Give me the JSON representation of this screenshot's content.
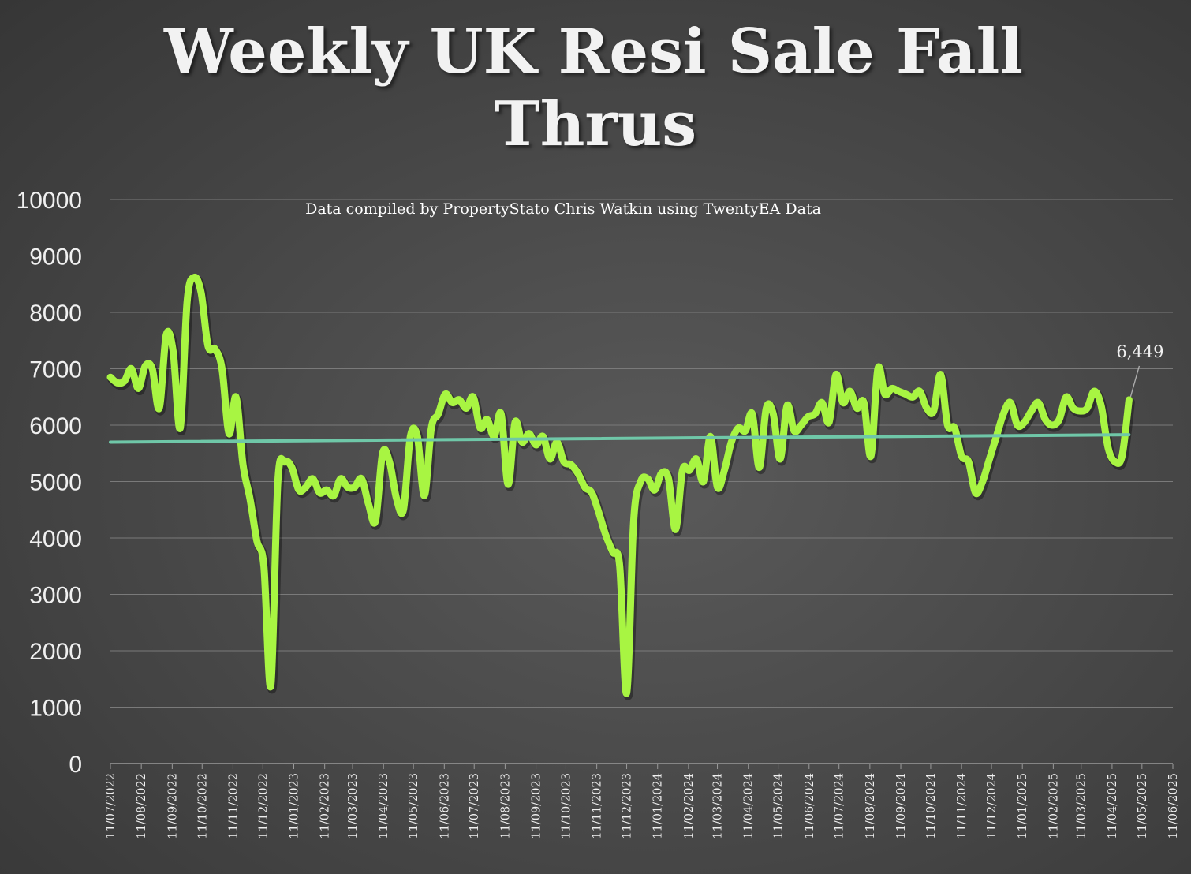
{
  "chart_data": {
    "type": "line",
    "title_line1": "Weekly UK Resi Sale Fall",
    "title_line2": "Thrus",
    "subtitle": "Data compiled by PropertyStato Chris Watkin using TwentyEA Data",
    "ylim": [
      0,
      10000
    ],
    "yticks": [
      "0",
      "1000",
      "2000",
      "3000",
      "4000",
      "5000",
      "6000",
      "7000",
      "8000",
      "9000",
      "10000"
    ],
    "grid": true,
    "xlim": [
      "2022-07-11",
      "2025-06-11"
    ],
    "xticks": [
      "11/07/2022",
      "11/08/2022",
      "11/09/2022",
      "11/10/2022",
      "11/11/2022",
      "11/12/2022",
      "11/01/2023",
      "11/02/2023",
      "11/03/2023",
      "11/04/2023",
      "11/05/2023",
      "11/06/2023",
      "11/07/2023",
      "11/08/2023",
      "11/09/2023",
      "11/10/2023",
      "11/11/2023",
      "11/12/2023",
      "11/01/2024",
      "11/02/2024",
      "11/03/2024",
      "11/04/2024",
      "11/05/2024",
      "11/06/2024",
      "11/07/2024",
      "11/08/2024",
      "11/09/2024",
      "11/10/2024",
      "11/11/2024",
      "11/12/2024",
      "11/01/2025",
      "11/02/2025",
      "11/03/2025",
      "11/04/2025",
      "11/05/2025",
      "11/06/2025"
    ],
    "line_color": "#a8f542",
    "trend_color": "#6fc7a8",
    "series": [
      {
        "values": [
          [
            "2022-07-11",
            6850
          ],
          [
            "2022-07-18",
            6750
          ],
          [
            "2022-07-25",
            6780
          ],
          [
            "2022-08-01",
            7000
          ],
          [
            "2022-08-08",
            6650
          ],
          [
            "2022-08-15",
            7050
          ],
          [
            "2022-08-22",
            7000
          ],
          [
            "2022-08-29",
            6300
          ],
          [
            "2022-09-05",
            7600
          ],
          [
            "2022-09-12",
            7300
          ],
          [
            "2022-09-19",
            5950
          ],
          [
            "2022-09-26",
            8200
          ],
          [
            "2022-10-03",
            8620
          ],
          [
            "2022-10-10",
            8350
          ],
          [
            "2022-10-17",
            7400
          ],
          [
            "2022-10-24",
            7350
          ],
          [
            "2022-10-31",
            7000
          ],
          [
            "2022-11-07",
            5850
          ],
          [
            "2022-11-14",
            6500
          ],
          [
            "2022-11-21",
            5300
          ],
          [
            "2022-11-28",
            4700
          ],
          [
            "2022-12-05",
            3950
          ],
          [
            "2022-12-12",
            3500
          ],
          [
            "2022-12-19",
            1380
          ],
          [
            "2022-12-26",
            5000
          ],
          [
            "2023-01-02",
            5350
          ],
          [
            "2023-01-09",
            5250
          ],
          [
            "2023-01-16",
            4850
          ],
          [
            "2023-01-23",
            4900
          ],
          [
            "2023-01-30",
            5050
          ],
          [
            "2023-02-06",
            4800
          ],
          [
            "2023-02-13",
            4850
          ],
          [
            "2023-02-20",
            4750
          ],
          [
            "2023-02-27",
            5050
          ],
          [
            "2023-03-06",
            4900
          ],
          [
            "2023-03-13",
            4900
          ],
          [
            "2023-03-20",
            5050
          ],
          [
            "2023-03-27",
            4600
          ],
          [
            "2023-04-03",
            4300
          ],
          [
            "2023-04-10",
            5500
          ],
          [
            "2023-04-17",
            5350
          ],
          [
            "2023-04-24",
            4700
          ],
          [
            "2023-05-01",
            4500
          ],
          [
            "2023-05-08",
            5800
          ],
          [
            "2023-05-15",
            5800
          ],
          [
            "2023-05-22",
            4750
          ],
          [
            "2023-05-29",
            5950
          ],
          [
            "2023-06-05",
            6200
          ],
          [
            "2023-06-12",
            6550
          ],
          [
            "2023-06-19",
            6400
          ],
          [
            "2023-06-26",
            6450
          ],
          [
            "2023-07-03",
            6300
          ],
          [
            "2023-07-10",
            6500
          ],
          [
            "2023-07-17",
            5950
          ],
          [
            "2023-07-24",
            6100
          ],
          [
            "2023-07-31",
            5800
          ],
          [
            "2023-08-07",
            6200
          ],
          [
            "2023-08-14",
            4950
          ],
          [
            "2023-08-21",
            6050
          ],
          [
            "2023-08-28",
            5700
          ],
          [
            "2023-09-04",
            5850
          ],
          [
            "2023-09-11",
            5650
          ],
          [
            "2023-09-18",
            5800
          ],
          [
            "2023-09-25",
            5400
          ],
          [
            "2023-10-02",
            5700
          ],
          [
            "2023-10-09",
            5350
          ],
          [
            "2023-10-16",
            5300
          ],
          [
            "2023-10-23",
            5150
          ],
          [
            "2023-10-30",
            4900
          ],
          [
            "2023-11-06",
            4800
          ],
          [
            "2023-11-13",
            4450
          ],
          [
            "2023-11-20",
            4050
          ],
          [
            "2023-11-27",
            3750
          ],
          [
            "2023-12-04",
            3500
          ],
          [
            "2023-12-11",
            1250
          ],
          [
            "2023-12-18",
            4300
          ],
          [
            "2023-12-25",
            5000
          ],
          [
            "2024-01-01",
            5050
          ],
          [
            "2024-01-08",
            4850
          ],
          [
            "2024-01-15",
            5150
          ],
          [
            "2024-01-22",
            5050
          ],
          [
            "2024-01-29",
            4150
          ],
          [
            "2024-02-05",
            5200
          ],
          [
            "2024-02-12",
            5200
          ],
          [
            "2024-02-19",
            5400
          ],
          [
            "2024-02-26",
            5000
          ],
          [
            "2024-03-04",
            5800
          ],
          [
            "2024-03-11",
            4900
          ],
          [
            "2024-03-18",
            5200
          ],
          [
            "2024-03-25",
            5700
          ],
          [
            "2024-04-01",
            5950
          ],
          [
            "2024-04-08",
            5900
          ],
          [
            "2024-04-15",
            6200
          ],
          [
            "2024-04-22",
            5250
          ],
          [
            "2024-04-29",
            6300
          ],
          [
            "2024-05-06",
            6200
          ],
          [
            "2024-05-13",
            5400
          ],
          [
            "2024-05-20",
            6350
          ],
          [
            "2024-05-27",
            5900
          ],
          [
            "2024-06-03",
            6000
          ],
          [
            "2024-06-10",
            6150
          ],
          [
            "2024-06-17",
            6200
          ],
          [
            "2024-06-24",
            6400
          ],
          [
            "2024-07-01",
            6050
          ],
          [
            "2024-07-08",
            6900
          ],
          [
            "2024-07-15",
            6400
          ],
          [
            "2024-07-22",
            6600
          ],
          [
            "2024-07-29",
            6300
          ],
          [
            "2024-08-05",
            6400
          ],
          [
            "2024-08-12",
            5450
          ],
          [
            "2024-08-19",
            7000
          ],
          [
            "2024-08-26",
            6550
          ],
          [
            "2024-09-02",
            6650
          ],
          [
            "2024-09-09",
            6600
          ],
          [
            "2024-09-16",
            6550
          ],
          [
            "2024-09-23",
            6500
          ],
          [
            "2024-09-30",
            6600
          ],
          [
            "2024-10-07",
            6300
          ],
          [
            "2024-10-14",
            6250
          ],
          [
            "2024-10-21",
            6900
          ],
          [
            "2024-10-28",
            6000
          ],
          [
            "2024-11-04",
            5950
          ],
          [
            "2024-11-11",
            5450
          ],
          [
            "2024-11-18",
            5350
          ],
          [
            "2024-11-25",
            4800
          ],
          [
            "2024-12-02",
            5000
          ],
          [
            "2024-12-09",
            5400
          ],
          [
            "2024-12-16",
            5800
          ],
          [
            "2024-12-23",
            6200
          ],
          [
            "2024-12-30",
            6400
          ],
          [
            "2025-01-06",
            6000
          ],
          [
            "2025-01-13",
            6050
          ],
          [
            "2025-01-20",
            6250
          ],
          [
            "2025-01-27",
            6400
          ],
          [
            "2025-02-03",
            6100
          ],
          [
            "2025-02-10",
            6000
          ],
          [
            "2025-02-17",
            6100
          ],
          [
            "2025-02-24",
            6500
          ],
          [
            "2025-03-03",
            6300
          ],
          [
            "2025-03-10",
            6250
          ],
          [
            "2025-03-17",
            6300
          ],
          [
            "2025-03-24",
            6600
          ],
          [
            "2025-03-31",
            6350
          ],
          [
            "2025-04-07",
            5600
          ],
          [
            "2025-04-14",
            5350
          ],
          [
            "2025-04-21",
            5450
          ],
          [
            "2025-04-28",
            6449
          ]
        ]
      }
    ],
    "trendline": [
      [
        "2022-07-11",
        5700
      ],
      [
        "2025-04-28",
        5830
      ]
    ],
    "data_label": {
      "x": "2025-04-28",
      "y": 6449,
      "text": "6,449"
    }
  }
}
